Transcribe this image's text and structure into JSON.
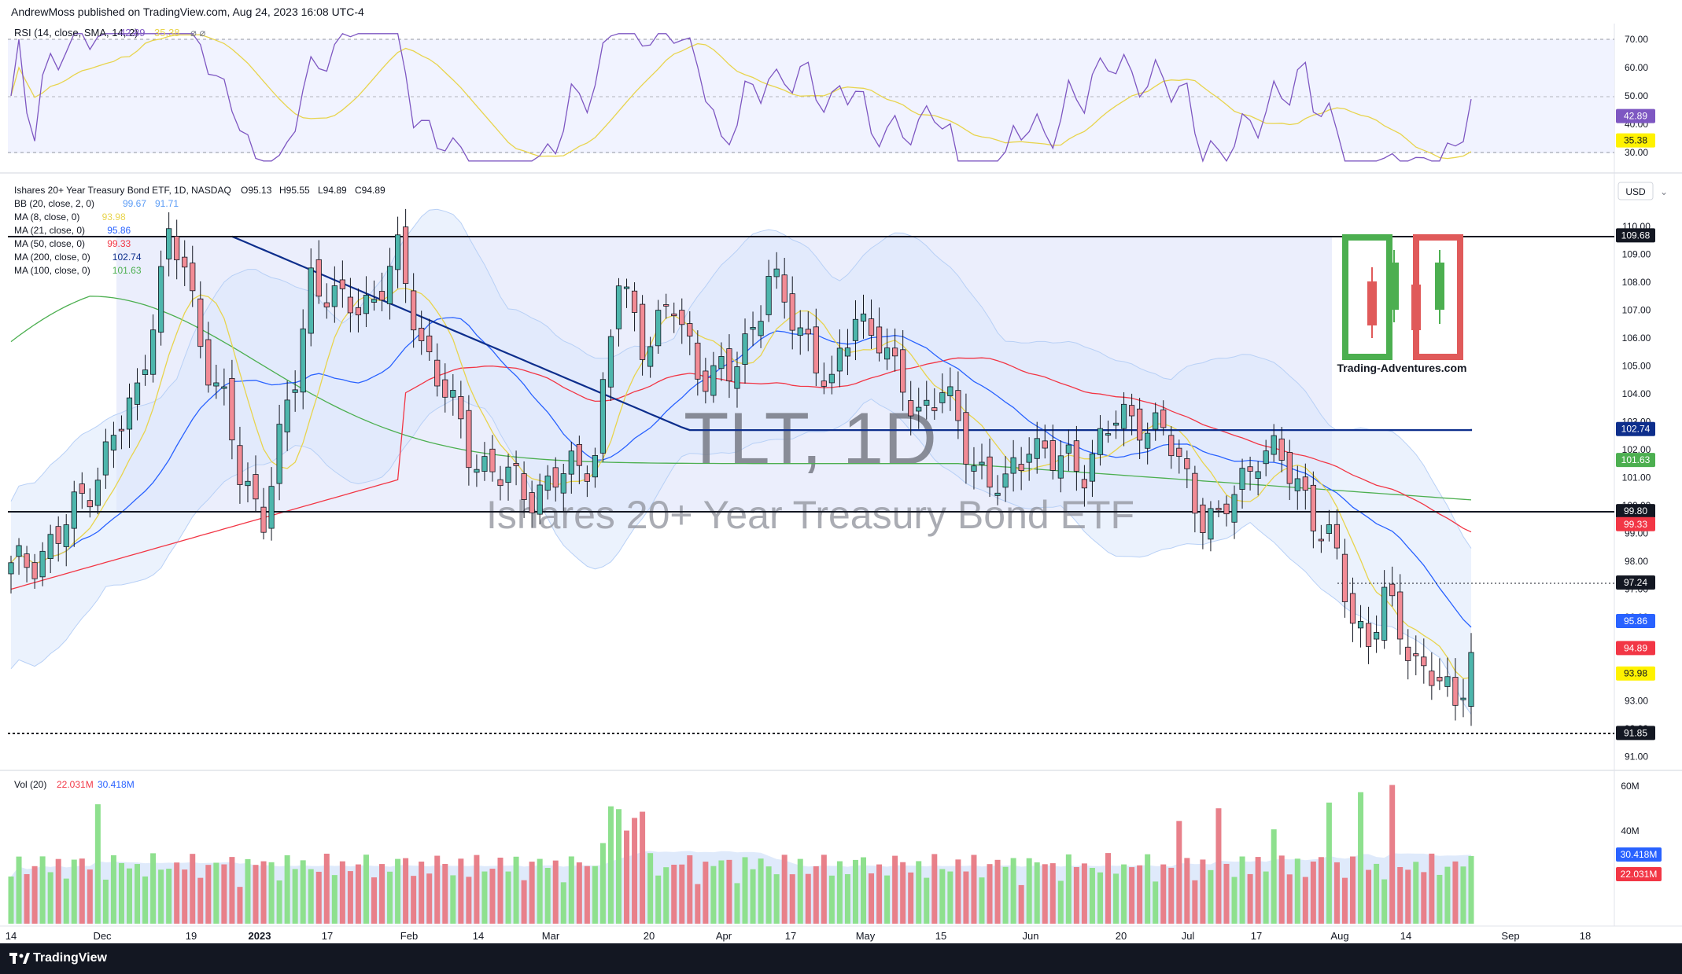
{
  "header": {
    "publisher_line": "AndrewMoss published on TradingView.com, Aug 24, 2023 16:08 UTC-4"
  },
  "rsi": {
    "title": "RSI (14, close, SMA, 14, 2)",
    "value": "42.89",
    "sma_value": "35.38",
    "axis": [
      "70.00",
      "60.00",
      "50.00",
      "40.00",
      "30.00"
    ],
    "badge_rsi": "42.89",
    "badge_sma": "35.38"
  },
  "main": {
    "symbol_line": "Ishares 20+ Year Treasury Bond ETF, 1D, NASDAQ",
    "ohlc": {
      "o": "O95.13",
      "h": "H95.55",
      "l": "L94.89",
      "c": "C94.89"
    },
    "indicators": [
      {
        "name": "BB (20, close, 2, 0)",
        "values": [
          "99.67",
          "91.71"
        ],
        "color": "#5b9cf6"
      },
      {
        "name": "MA (8, close, 0)",
        "values": [
          "93.98"
        ],
        "color": "#e8d44d"
      },
      {
        "name": "MA (21, close, 0)",
        "values": [
          "95.86"
        ],
        "color": "#2962ff"
      },
      {
        "name": "MA (50, close, 0)",
        "values": [
          "99.33"
        ],
        "color": "#f23645"
      },
      {
        "name": "MA (200, close, 0)",
        "values": [
          "102.74"
        ],
        "color": "#0d2e8c"
      },
      {
        "name": "MA (100, close, 0)",
        "values": [
          "101.63"
        ],
        "color": "#4caf50"
      }
    ],
    "watermark_ticker": "TLT, 1D",
    "watermark_name": "Ishares 20+ Year Treasury Bond ETF",
    "currency": "USD",
    "price_axis": [
      "110.00",
      "109.00",
      "108.00",
      "107.00",
      "106.00",
      "105.00",
      "104.00",
      "103.00",
      "102.00",
      "101.00",
      "100.00",
      "99.00",
      "98.00",
      "97.00",
      "96.00",
      "95.00",
      "93.00",
      "92.00",
      "91.00"
    ],
    "badges": [
      {
        "text": "109.68",
        "bg": "#131722",
        "fg": "#ffffff"
      },
      {
        "text": "102.74",
        "bg": "#0d2e8c",
        "fg": "#ffffff"
      },
      {
        "text": "101.63",
        "bg": "#4caf50",
        "fg": "#ffffff"
      },
      {
        "text": "99.80",
        "bg": "#131722",
        "fg": "#ffffff"
      },
      {
        "text": "99.33",
        "bg": "#f23645",
        "fg": "#ffffff"
      },
      {
        "text": "97.24",
        "bg": "#131722",
        "fg": "#ffffff"
      },
      {
        "text": "95.86",
        "bg": "#2962ff",
        "fg": "#ffffff"
      },
      {
        "text": "94.89",
        "bg": "#f23645",
        "fg": "#ffffff"
      },
      {
        "text": "93.98",
        "bg": "#fff200",
        "fg": "#131722"
      },
      {
        "text": "91.85",
        "bg": "#131722",
        "fg": "#ffffff"
      }
    ],
    "logo_text": "Trading-Adventures.com"
  },
  "volume": {
    "title": "Vol (20)",
    "value": "22.031M",
    "ma_value": "30.418M",
    "axis": [
      "60M",
      "40M"
    ],
    "badge_ma": "30.418M",
    "badge_vol": "22.031M"
  },
  "time_axis": [
    "14",
    "Dec",
    "19",
    "2023",
    "17",
    "Feb",
    "14",
    "Mar",
    "20",
    "Apr",
    "17",
    "May",
    "15",
    "Jun",
    "20",
    "Jul",
    "17",
    "Aug",
    "14",
    "Sep",
    "18"
  ],
  "footer": {
    "brand": "TradingView"
  },
  "colors": {
    "up": "#26a69a",
    "down": "#ef5350",
    "vol_up": "#8ee08e",
    "vol_down": "#e8808a",
    "rsi": "#7e57c2",
    "rsi_sma": "#e8d44d"
  },
  "chart_data": {
    "type": "candlestick",
    "title": "Ishares 20+ Year Treasury Bond ETF, 1D, NASDAQ",
    "last": {
      "open": 95.13,
      "high": 95.55,
      "low": 94.89,
      "close": 94.89
    },
    "horizontal_levels": [
      109.68,
      99.8,
      97.24,
      91.85
    ],
    "moving_averages": {
      "MA8": 93.98,
      "MA21": 95.86,
      "MA50": 99.33,
      "MA100": 101.63,
      "MA200": 102.74
    },
    "bollinger": {
      "upper": 99.67,
      "lower": 91.71
    },
    "rsi": {
      "rsi": 42.89,
      "sma": 35.38
    },
    "volume": {
      "last": "22.031M",
      "ma20": "30.418M"
    },
    "y_range": [
      91,
      110.5
    ]
  }
}
